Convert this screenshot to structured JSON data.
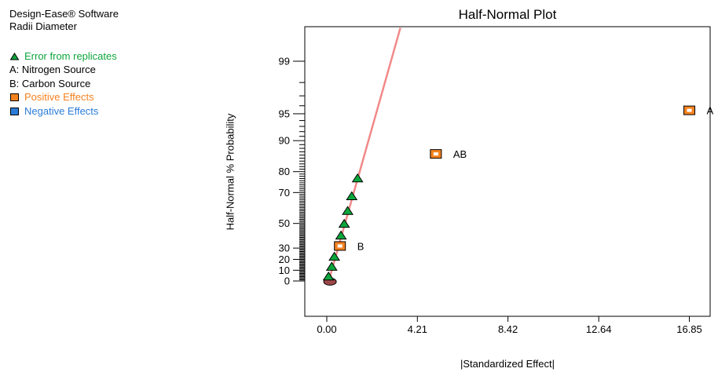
{
  "panel": {
    "software_name": "Design-Ease® Software",
    "response_name": "Radii Diameter",
    "legend": [
      {
        "marker": "triangle",
        "marker_color": "#0DA63C",
        "label": "Error from replicates",
        "text_color": "#0DA63C"
      },
      {
        "marker": "none",
        "marker_color": "",
        "label": "A: Nitrogen Source",
        "text_color": "#000000"
      },
      {
        "marker": "none",
        "marker_color": "",
        "label": "B: Carbon Source",
        "text_color": "#000000"
      },
      {
        "marker": "square",
        "marker_color": "#F5821F",
        "label": "Positive Effects",
        "text_color": "#F5821F"
      },
      {
        "marker": "square",
        "marker_color": "#2B7CD8",
        "label": "Negative Effects",
        "text_color": "#2B7CD8"
      }
    ]
  },
  "chart_data": {
    "type": "scatter",
    "title": "Half-Normal Plot",
    "xlabel": "|Standardized Effect|",
    "ylabel": "Half-Normal % Probability",
    "y_scale": "half-normal probability",
    "grid": false,
    "legend_position": "outside-left",
    "xlim": [
      -1.0,
      17.8
    ],
    "x_ticks": [
      {
        "value": 0,
        "label": "0.00"
      },
      {
        "value": 4.21,
        "label": "4.21"
      },
      {
        "value": 8.42,
        "label": "8.42"
      },
      {
        "value": 12.64,
        "label": "12.64"
      },
      {
        "value": 16.85,
        "label": "16.85"
      }
    ],
    "y_major_ticks": [
      {
        "p": 0,
        "label": "0"
      },
      {
        "p": 10,
        "label": "10"
      },
      {
        "p": 20,
        "label": "20"
      },
      {
        "p": 30,
        "label": "30"
      },
      {
        "p": 50,
        "label": "50"
      },
      {
        "p": 70,
        "label": "70"
      },
      {
        "p": 80,
        "label": "80"
      },
      {
        "p": 90,
        "label": "90"
      },
      {
        "p": 95,
        "label": "95"
      },
      {
        "p": 99,
        "label": "99"
      }
    ],
    "y_minor_tick_step_percent": 1,
    "points": [
      {
        "x": 0.08,
        "p": 4.55,
        "marker": "triangle",
        "series": "error"
      },
      {
        "x": 0.23,
        "p": 13.64,
        "marker": "triangle",
        "series": "error"
      },
      {
        "x": 0.35,
        "p": 22.73,
        "marker": "triangle",
        "series": "error"
      },
      {
        "x": 0.61,
        "p": 31.82,
        "marker": "square",
        "series": "positive",
        "label": "B"
      },
      {
        "x": 0.66,
        "p": 40.91,
        "marker": "triangle",
        "series": "error"
      },
      {
        "x": 0.81,
        "p": 50.0,
        "marker": "triangle",
        "series": "error"
      },
      {
        "x": 0.97,
        "p": 59.09,
        "marker": "triangle",
        "series": "error"
      },
      {
        "x": 1.16,
        "p": 68.18,
        "marker": "triangle",
        "series": "error"
      },
      {
        "x": 1.43,
        "p": 77.27,
        "marker": "triangle",
        "series": "error"
      },
      {
        "x": 5.07,
        "p": 86.36,
        "marker": "square",
        "series": "positive",
        "label": "AB"
      },
      {
        "x": 16.85,
        "p": 95.45,
        "marker": "square",
        "series": "positive",
        "label": "A"
      }
    ],
    "overlap_marker": {
      "x": 0.15,
      "p": 0.8,
      "marker": "ellipse"
    },
    "fit_line": {
      "x1": 0.1,
      "p1": 0.6,
      "x2": 3.42,
      "p2": 99.7
    },
    "colors": {
      "error_triangle": "#0DA63C",
      "positive_square": "#F5821F",
      "negative_square": "#2B7CD8",
      "fit_line": "#F18989",
      "overlap_ellipse": "#9E4848",
      "axis": "#000000"
    }
  }
}
